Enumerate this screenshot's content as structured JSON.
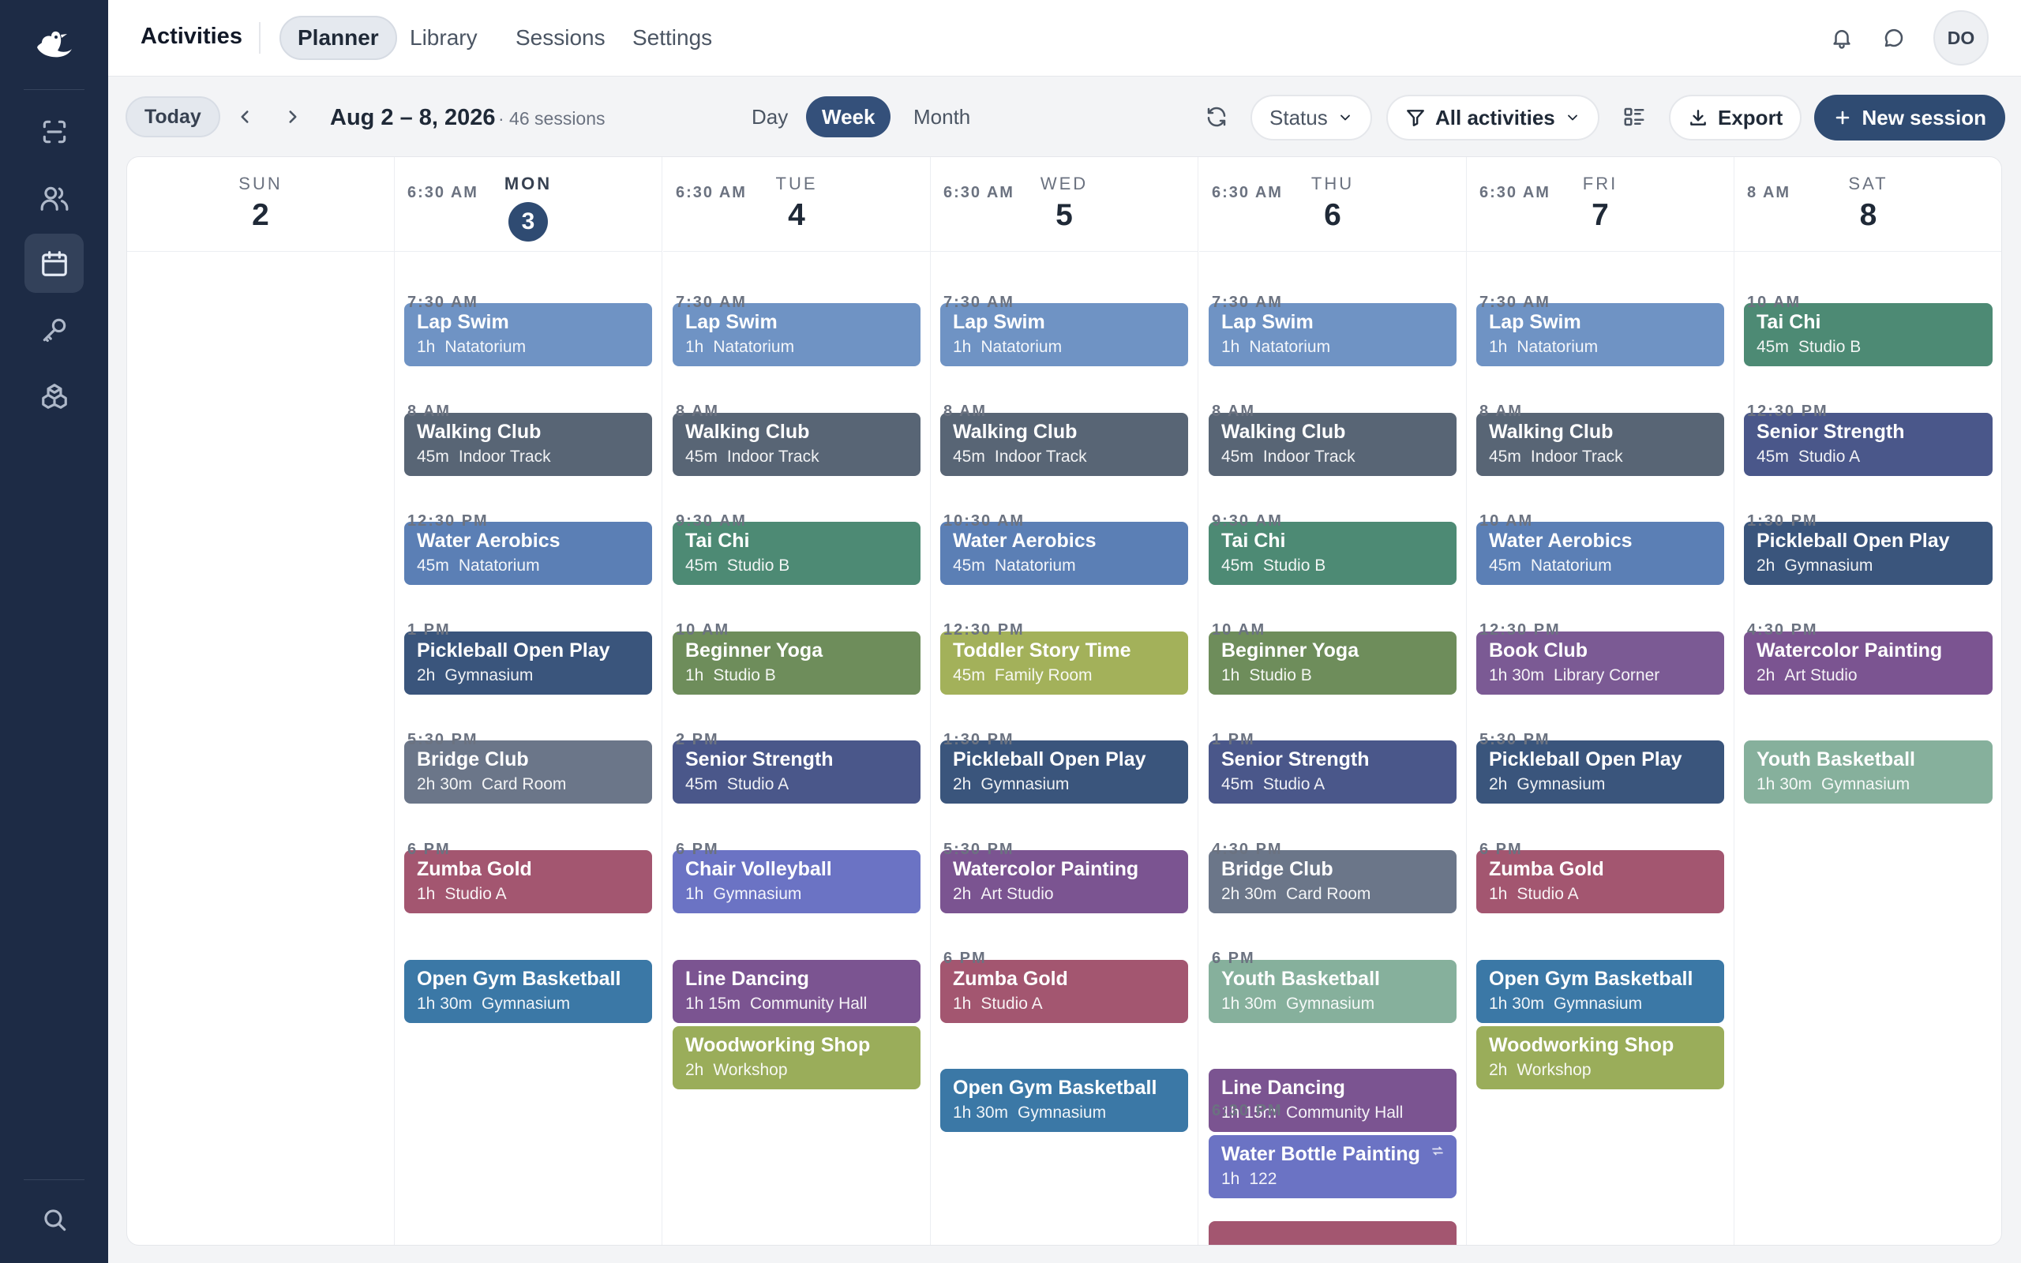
{
  "app": {
    "title": "Activities"
  },
  "nav": {
    "tabs": [
      "Planner",
      "Library",
      "Sessions",
      "Settings"
    ]
  },
  "user": {
    "initials": "DO"
  },
  "toolbar": {
    "today_label": "Today",
    "range_label": "Aug 2 – 8, 2026",
    "session_count": "· 46 sessions",
    "views": [
      "Day",
      "Week",
      "Month"
    ],
    "active_view": "Week",
    "status_filter": "Status",
    "activity_filter": "All activities",
    "export_label": "Export",
    "new_session_label": "New session"
  },
  "colors": {
    "sidebar_bg": "#1d2b45",
    "primary": "#2f4b72",
    "swim": "#6f93c4",
    "walking": "#586575",
    "aerobics": "#5b7fb5",
    "taichi": "#4d8a74",
    "pickleball": "#3a557c",
    "yoga": "#6e8d5b",
    "strength": "#4a578a",
    "volleyball": "#6b73c4",
    "bridge": "#6b7689",
    "zumba": "#a35670",
    "opengym": "#3b78a6",
    "linedance": "#7b5491",
    "woodworking": "#9aad5a",
    "storytime": "#a3b15a",
    "watercolor": "#7b5491",
    "bookclub": "#7b5a94",
    "youthbball": "#86b09c",
    "bottle": "#6b73c4"
  },
  "days": [
    {
      "name": "SUN",
      "num": "2",
      "today": false,
      "events": []
    },
    {
      "name": "MON",
      "num": "3",
      "today": true,
      "events": [
        {
          "time": "6:30 AM",
          "title": "Lap Swim",
          "duration": "1h",
          "location": "Natatorium",
          "color": "#6f93c4"
        },
        {
          "time": "7:30 AM",
          "title": "Walking Club",
          "duration": "45m",
          "location": "Indoor Track",
          "color": "#586575"
        },
        {
          "time": "8 AM",
          "title": "Water Aerobics",
          "duration": "45m",
          "location": "Natatorium",
          "color": "#5b7fb5"
        },
        {
          "time": "12:30 PM",
          "title": "Pickleball Open Play",
          "duration": "2h",
          "location": "Gymnasium",
          "color": "#3a557c"
        },
        {
          "time": "1 PM",
          "title": "Bridge Club",
          "duration": "2h 30m",
          "location": "Card Room",
          "color": "#6b7689"
        },
        {
          "time": "5:30 PM",
          "title": "Zumba Gold",
          "duration": "1h",
          "location": "Studio A",
          "color": "#a35670"
        },
        {
          "time": "6 PM",
          "title": "Open Gym Basketball",
          "duration": "1h 30m",
          "location": "Gymnasium",
          "color": "#3b78a6"
        }
      ]
    },
    {
      "name": "TUE",
      "num": "4",
      "today": false,
      "events": [
        {
          "time": "6:30 AM",
          "title": "Lap Swim",
          "duration": "1h",
          "location": "Natatorium",
          "color": "#6f93c4"
        },
        {
          "time": "7:30 AM",
          "title": "Walking Club",
          "duration": "45m",
          "location": "Indoor Track",
          "color": "#586575"
        },
        {
          "time": "8 AM",
          "title": "Tai Chi",
          "duration": "45m",
          "location": "Studio B",
          "color": "#4d8a74"
        },
        {
          "time": "9:30 AM",
          "title": "Beginner Yoga",
          "duration": "1h",
          "location": "Studio B",
          "color": "#6e8d5b"
        },
        {
          "time": "10 AM",
          "title": "Senior Strength",
          "duration": "45m",
          "location": "Studio A",
          "color": "#4a578a"
        },
        {
          "time": "2 PM",
          "title": "Chair Volleyball",
          "duration": "1h",
          "location": "Gymnasium",
          "color": "#6b73c4"
        },
        {
          "time": "6 PM",
          "title": "Line Dancing",
          "duration": "1h 15m",
          "location": "Community Hall",
          "color": "#7b5491"
        },
        {
          "time": "",
          "title": "Woodworking Shop",
          "duration": "2h",
          "location": "Workshop",
          "color": "#9aad5a"
        }
      ]
    },
    {
      "name": "WED",
      "num": "5",
      "today": false,
      "events": [
        {
          "time": "6:30 AM",
          "title": "Lap Swim",
          "duration": "1h",
          "location": "Natatorium",
          "color": "#6f93c4"
        },
        {
          "time": "7:30 AM",
          "title": "Walking Club",
          "duration": "45m",
          "location": "Indoor Track",
          "color": "#586575"
        },
        {
          "time": "8 AM",
          "title": "Water Aerobics",
          "duration": "45m",
          "location": "Natatorium",
          "color": "#5b7fb5"
        },
        {
          "time": "10:30 AM",
          "title": "Toddler Story Time",
          "duration": "45m",
          "location": "Family Room",
          "color": "#a3b15a"
        },
        {
          "time": "12:30 PM",
          "title": "Pickleball Open Play",
          "duration": "2h",
          "location": "Gymnasium",
          "color": "#3a557c"
        },
        {
          "time": "1:30 PM",
          "title": "Watercolor Painting",
          "duration": "2h",
          "location": "Art Studio",
          "color": "#7b5491"
        },
        {
          "time": "5:30 PM",
          "title": "Zumba Gold",
          "duration": "1h",
          "location": "Studio A",
          "color": "#a35670"
        },
        {
          "time": "6 PM",
          "title": "Open Gym Basketball",
          "duration": "1h 30m",
          "location": "Gymnasium",
          "color": "#3b78a6"
        }
      ]
    },
    {
      "name": "THU",
      "num": "6",
      "today": false,
      "events": [
        {
          "time": "6:30 AM",
          "title": "Lap Swim",
          "duration": "1h",
          "location": "Natatorium",
          "color": "#6f93c4"
        },
        {
          "time": "7:30 AM",
          "title": "Walking Club",
          "duration": "45m",
          "location": "Indoor Track",
          "color": "#586575"
        },
        {
          "time": "8 AM",
          "title": "Tai Chi",
          "duration": "45m",
          "location": "Studio B",
          "color": "#4d8a74"
        },
        {
          "time": "9:30 AM",
          "title": "Beginner Yoga",
          "duration": "1h",
          "location": "Studio B",
          "color": "#6e8d5b"
        },
        {
          "time": "10 AM",
          "title": "Senior Strength",
          "duration": "45m",
          "location": "Studio A",
          "color": "#4a578a"
        },
        {
          "time": "1 PM",
          "title": "Bridge Club",
          "duration": "2h 30m",
          "location": "Card Room",
          "color": "#6b7689"
        },
        {
          "time": "4:30 PM",
          "title": "Youth Basketball",
          "duration": "1h 30m",
          "location": "Gymnasium",
          "color": "#86b09c"
        },
        {
          "time": "6 PM",
          "title": "Line Dancing",
          "duration": "1h 15m",
          "location": "Community Hall",
          "color": "#7b5491"
        },
        {
          "time": "",
          "title": "Water Bottle Painting",
          "duration": "1h",
          "location": "122",
          "color": "#6b73c4",
          "recurring": true
        },
        {
          "time": "6:30 PM",
          "title": "",
          "duration": "",
          "location": "",
          "color": "#a35670"
        }
      ]
    },
    {
      "name": "FRI",
      "num": "7",
      "today": false,
      "events": [
        {
          "time": "6:30 AM",
          "title": "Lap Swim",
          "duration": "1h",
          "location": "Natatorium",
          "color": "#6f93c4"
        },
        {
          "time": "7:30 AM",
          "title": "Walking Club",
          "duration": "45m",
          "location": "Indoor Track",
          "color": "#586575"
        },
        {
          "time": "8 AM",
          "title": "Water Aerobics",
          "duration": "45m",
          "location": "Natatorium",
          "color": "#5b7fb5"
        },
        {
          "time": "10 AM",
          "title": "Book Club",
          "duration": "1h 30m",
          "location": "Library Corner",
          "color": "#7b5a94"
        },
        {
          "time": "12:30 PM",
          "title": "Pickleball Open Play",
          "duration": "2h",
          "location": "Gymnasium",
          "color": "#3a557c"
        },
        {
          "time": "5:30 PM",
          "title": "Zumba Gold",
          "duration": "1h",
          "location": "Studio A",
          "color": "#a35670"
        },
        {
          "time": "6 PM",
          "title": "Open Gym Basketball",
          "duration": "1h 30m",
          "location": "Gymnasium",
          "color": "#3b78a6"
        },
        {
          "time": "",
          "title": "Woodworking Shop",
          "duration": "2h",
          "location": "Workshop",
          "color": "#9aad5a"
        }
      ]
    },
    {
      "name": "SAT",
      "num": "8",
      "today": false,
      "events": [
        {
          "time": "8 AM",
          "title": "Tai Chi",
          "duration": "45m",
          "location": "Studio B",
          "color": "#4d8a74"
        },
        {
          "time": "10 AM",
          "title": "Senior Strength",
          "duration": "45m",
          "location": "Studio A",
          "color": "#4a578a"
        },
        {
          "time": "12:30 PM",
          "title": "Pickleball Open Play",
          "duration": "2h",
          "location": "Gymnasium",
          "color": "#3a557c"
        },
        {
          "time": "1:30 PM",
          "title": "Watercolor Painting",
          "duration": "2h",
          "location": "Art Studio",
          "color": "#7b5491"
        },
        {
          "time": "4:30 PM",
          "title": "Youth Basketball",
          "duration": "1h 30m",
          "location": "Gymnasium",
          "color": "#86b09c"
        }
      ]
    }
  ]
}
